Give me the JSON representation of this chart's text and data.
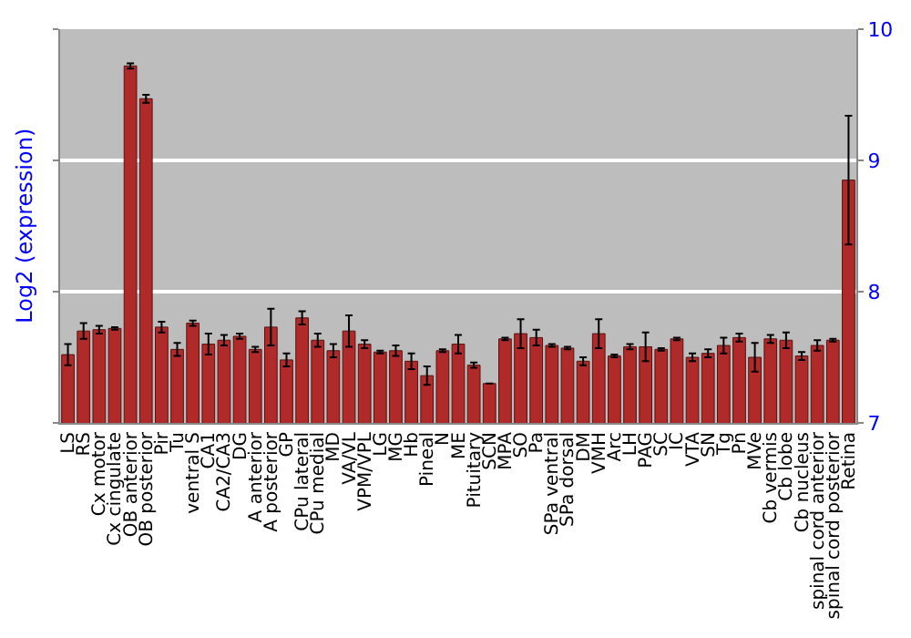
{
  "chart_data": {
    "type": "bar",
    "ylabel": "Log2 (expression)",
    "categories": [
      "LS",
      "RS",
      "Cx motor",
      "Cx cingulate",
      "OB anterior",
      "OB posterior",
      "Pir",
      "Tu",
      "ventral S",
      "CA1",
      "CA2/CA3",
      "DG",
      "A anterior",
      "A posterior",
      "GP",
      "CPu lateral",
      "CPu medial",
      "MD",
      "VA/VL",
      "VPM/VPL",
      "LG",
      "MG",
      "Hb",
      "Pineal",
      "N",
      "ME",
      "Pituitary",
      "SCN",
      "MPA",
      "SO",
      "Pa",
      "SPa ventral",
      "SPa dorsal",
      "DM",
      "VMH",
      "Arc",
      "LH",
      "PAG",
      "SC",
      "IC",
      "VTA",
      "SN",
      "Tg",
      "Pn",
      "MVe",
      "Cb vermis",
      "Cb lobe",
      "Cb nucleus",
      "spinal cord anterior",
      "spinal cord posterior",
      "Retina"
    ],
    "values": [
      7.52,
      7.7,
      7.71,
      7.72,
      9.72,
      9.47,
      7.73,
      7.56,
      7.76,
      7.6,
      7.63,
      7.66,
      7.56,
      7.73,
      7.48,
      7.8,
      7.63,
      7.55,
      7.7,
      7.6,
      7.54,
      7.55,
      7.47,
      7.36,
      7.55,
      7.6,
      7.44,
      7.3,
      7.64,
      7.68,
      7.65,
      7.59,
      7.57,
      7.47,
      7.68,
      7.51,
      7.58,
      7.58,
      7.56,
      7.64,
      7.5,
      7.53,
      7.59,
      7.65,
      7.5,
      7.64,
      7.63,
      7.51,
      7.59,
      7.63,
      8.85
    ],
    "errors": [
      0.08,
      0.06,
      0.03,
      0.01,
      0.02,
      0.03,
      0.04,
      0.05,
      0.02,
      0.08,
      0.04,
      0.02,
      0.02,
      0.14,
      0.05,
      0.05,
      0.05,
      0.05,
      0.12,
      0.03,
      0.01,
      0.04,
      0.06,
      0.07,
      0.01,
      0.07,
      0.02,
      null,
      0.01,
      0.11,
      0.06,
      0.01,
      0.01,
      0.03,
      0.11,
      0.01,
      0.02,
      0.11,
      0.01,
      0.01,
      0.03,
      0.03,
      0.06,
      0.03,
      0.11,
      0.03,
      0.06,
      0.03,
      0.04,
      0.01,
      0.49
    ],
    "color": "#b02a2a",
    "ylim": [
      7,
      10
    ],
    "yticks": [
      7,
      8,
      9,
      10
    ],
    "grid": "y"
  }
}
